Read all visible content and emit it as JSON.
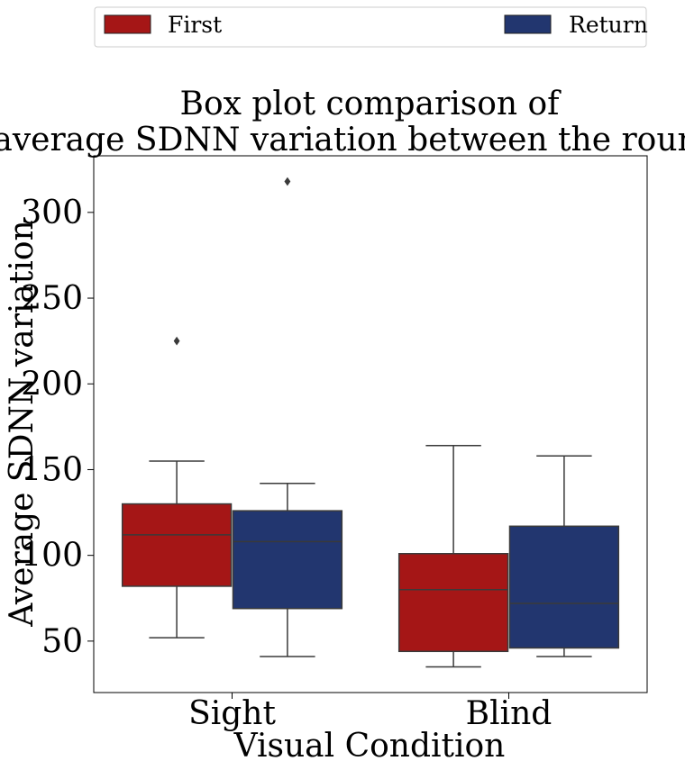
{
  "chart_data": {
    "type": "box",
    "title_lines": [
      "Box plot comparison of",
      "average SDNN variation between the rounds."
    ],
    "xlabel": "Visual Condition",
    "ylabel": "Average SDNN variation",
    "categories": [
      "Sight",
      "Blind"
    ],
    "yticks": [
      50,
      100,
      150,
      200,
      250,
      300
    ],
    "ylim": [
      20,
      333
    ],
    "grid": false,
    "legend_position": "top",
    "series": [
      {
        "name": "First",
        "color": "#a51616",
        "boxes": [
          {
            "category": "Sight",
            "whisker_low": 52,
            "q1": 82,
            "median": 112,
            "q3": 130,
            "whisker_high": 155,
            "outliers": [
              225
            ]
          },
          {
            "category": "Blind",
            "whisker_low": 35,
            "q1": 44,
            "median": 80,
            "q3": 101,
            "whisker_high": 164,
            "outliers": []
          }
        ]
      },
      {
        "name": "Return",
        "color": "#22366f",
        "boxes": [
          {
            "category": "Sight",
            "whisker_low": 41,
            "q1": 69,
            "median": 108,
            "q3": 126,
            "whisker_high": 142,
            "outliers": [
              318
            ]
          },
          {
            "category": "Blind",
            "whisker_low": 41,
            "q1": 46,
            "median": 72,
            "q3": 117,
            "whisker_high": 158,
            "outliers": []
          }
        ]
      }
    ]
  }
}
